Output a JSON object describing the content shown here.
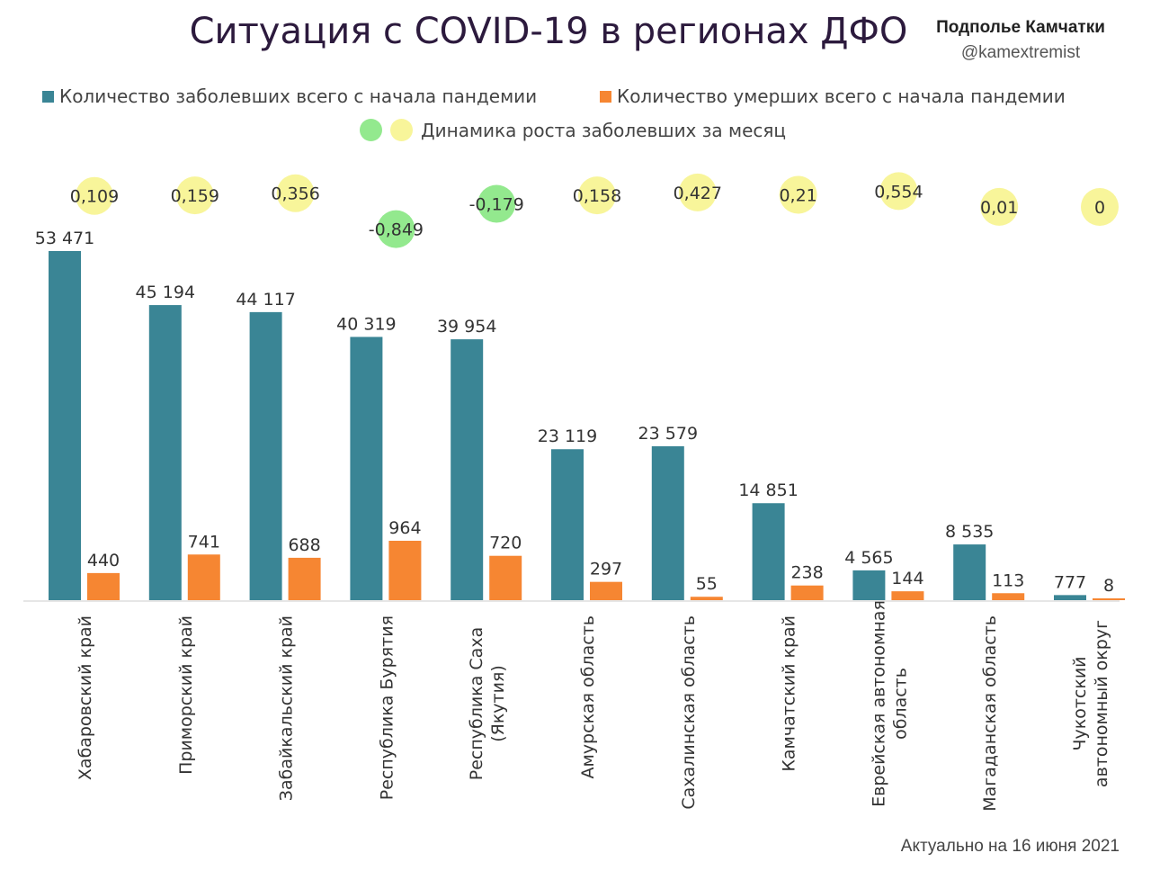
{
  "title": "Ситуация с COVID-19 в регионах ДФО",
  "brand": "Подполье Камчатки",
  "handle": "@kamextremist",
  "footer": "Актуально на 16 июня 2021",
  "colors": {
    "cases": "#3a8595",
    "deaths": "#f68632",
    "growth_positive": "#f8f59a",
    "growth_negative": "#93e98e"
  },
  "legend": {
    "cases": "Количество заболевших всего с начала пандемии",
    "deaths": "Количество умерших всего с начала пандемии",
    "growth": "Динамика роста заболевших за месяц"
  },
  "chart_data": {
    "type": "bar",
    "categories": [
      "Хабаровский край",
      "Приморский край",
      "Забайкальский край",
      "Республика Бурятия",
      "Республика Саха (Якутия)",
      "Амурская область",
      "Сахалинская область",
      "Камчатский край",
      "Еврейская автономная область",
      "Магаданская область",
      "Чукотский автономный округ"
    ],
    "category_lines": [
      [
        "Хабаровский край"
      ],
      [
        "Приморский край"
      ],
      [
        "Забайкальский край"
      ],
      [
        "Республика Бурятия"
      ],
      [
        "Республика Саха",
        "(Якутия)"
      ],
      [
        "Амурская область"
      ],
      [
        "Сахалинская область"
      ],
      [
        "Камчатский край"
      ],
      [
        "Еврейская автономная",
        "область"
      ],
      [
        "Магаданская область"
      ],
      [
        "Чукотский",
        "автономный округ"
      ]
    ],
    "series": [
      {
        "name": "Количество заболевших всего с начала пандемии",
        "values": [
          53471,
          45194,
          44117,
          40319,
          39954,
          23119,
          23579,
          14851,
          4565,
          8535,
          777
        ],
        "labels": [
          "53 471",
          "45 194",
          "44 117",
          "40 319",
          "39 954",
          "23 119",
          "23 579",
          "14 851",
          "4 565",
          "8 535",
          "777"
        ]
      },
      {
        "name": "Количество умерших всего с начала пандемии",
        "values": [
          440,
          741,
          688,
          964,
          720,
          297,
          55,
          238,
          144,
          113,
          8
        ],
        "labels": [
          "440",
          "741",
          "688",
          "964",
          "720",
          "297",
          "55",
          "238",
          "144",
          "113",
          "8"
        ]
      },
      {
        "name": "Динамика роста заболевших за месяц",
        "values": [
          0.109,
          0.159,
          0.356,
          -0.849,
          -0.179,
          0.158,
          0.427,
          0.21,
          0.554,
          0.01,
          0
        ],
        "labels": [
          "0,109",
          "0,159",
          "0,356",
          "-0,849",
          "-0,179",
          "0,158",
          "0,427",
          "0,21",
          "0,554",
          "0,01",
          "0"
        ]
      }
    ],
    "grid": false,
    "legend_position": "top"
  }
}
